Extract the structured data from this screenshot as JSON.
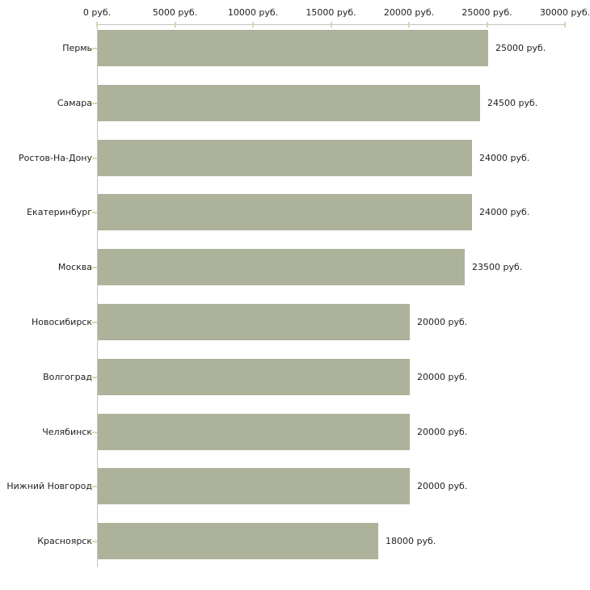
{
  "chart_data": {
    "type": "bar",
    "orientation": "horizontal",
    "title": "",
    "xlabel": "",
    "ylabel": "",
    "unit": "руб.",
    "xlim": [
      0,
      30000
    ],
    "grid": false,
    "legend": "none",
    "x_ticks": [
      0,
      5000,
      10000,
      15000,
      20000,
      25000,
      30000
    ],
    "x_tick_labels": [
      "0 руб.",
      "5000 руб.",
      "10000 руб.",
      "15000 руб.",
      "20000 руб.",
      "25000 руб.",
      "30000 руб."
    ],
    "categories": [
      "Пермь",
      "Самара",
      "Ростов-На-Дону",
      "Екатеринбург",
      "Москва",
      "Новосибирск",
      "Волгоград",
      "Челябинск",
      "Нижний Новгород",
      "Красноярск"
    ],
    "values": [
      25000,
      24500,
      24000,
      24000,
      23500,
      20000,
      20000,
      20000,
      20000,
      18000
    ],
    "value_labels": [
      "25000 руб.",
      "24500 руб.",
      "24000 руб.",
      "24000 руб.",
      "23500 руб.",
      "20000 руб.",
      "20000 руб.",
      "20000 руб.",
      "20000 руб.",
      "18000 руб."
    ],
    "colors": {
      "bar": "#adb29a",
      "axis_line": "#c3c3c3",
      "tick_mark": "#d9d5ab",
      "text": "#1f1f1f",
      "background": "#ffffff"
    }
  }
}
